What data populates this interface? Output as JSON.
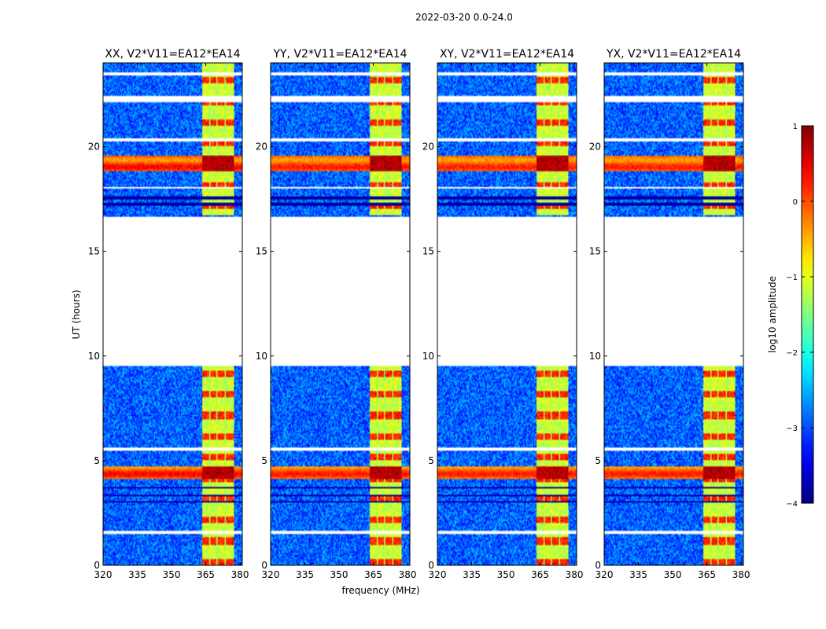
{
  "chart_data": {
    "type": "heatmap",
    "suptitle": "2022-03-20 0.0-24.0",
    "xlabel": "frequency (MHz)",
    "ylabel": "UT (hours)",
    "xlim": [
      320,
      381
    ],
    "ylim": [
      0,
      24
    ],
    "xticks": [
      320,
      335,
      350,
      365,
      380
    ],
    "yticks": [
      0,
      5,
      10,
      15,
      20
    ],
    "panels": [
      {
        "title": "XX, V2*V11=EA12*EA14",
        "hot_band_strength": 1.0
      },
      {
        "title": "YY, V2*V11=EA12*EA14",
        "hot_band_strength": 0.85
      },
      {
        "title": "XY, V2*V11=EA12*EA14",
        "hot_band_strength": 0.8
      },
      {
        "title": "YX, V2*V11=EA12*EA14",
        "hot_band_strength": 0.8
      }
    ],
    "colorbar": {
      "label": "log10 amplitude",
      "vmin": -4,
      "vmax": 1,
      "ticks": [
        {
          "value": 1,
          "label": "1"
        },
        {
          "value": 0,
          "label": "0"
        },
        {
          "value": -1,
          "label": "−1"
        },
        {
          "value": -2,
          "label": "−2"
        },
        {
          "value": -3,
          "label": "−3"
        },
        {
          "value": -4,
          "label": "−4"
        }
      ],
      "colormap": "jet"
    },
    "data_gaps_hours": [
      [
        0.43,
        0.48
      ],
      [
        1.5,
        1.62
      ],
      [
        5.45,
        5.6
      ],
      [
        9.5,
        16.65
      ],
      [
        18.0,
        18.05
      ],
      [
        20.25,
        20.42
      ],
      [
        22.15,
        22.4
      ],
      [
        23.4,
        23.55
      ]
    ],
    "dark_rows_hours": [
      [
        3.0,
        3.1
      ],
      [
        3.3,
        3.4
      ],
      [
        3.65,
        3.75
      ],
      [
        17.2,
        17.3
      ],
      [
        17.5,
        17.6
      ]
    ],
    "hot_rows_hours": [
      [
        4.1,
        4.75
      ],
      [
        18.8,
        19.55
      ]
    ],
    "signal_band_mhz": [
      363.5,
      377.5
    ],
    "signal_band_gaps_mhz": [
      [
        366.4,
        367.0
      ],
      [
        369.7,
        370.3
      ],
      [
        373.0,
        373.6
      ]
    ],
    "signal_active_hours": [
      [
        0.0,
        9.5
      ],
      [
        16.7,
        24.0
      ]
    ]
  }
}
